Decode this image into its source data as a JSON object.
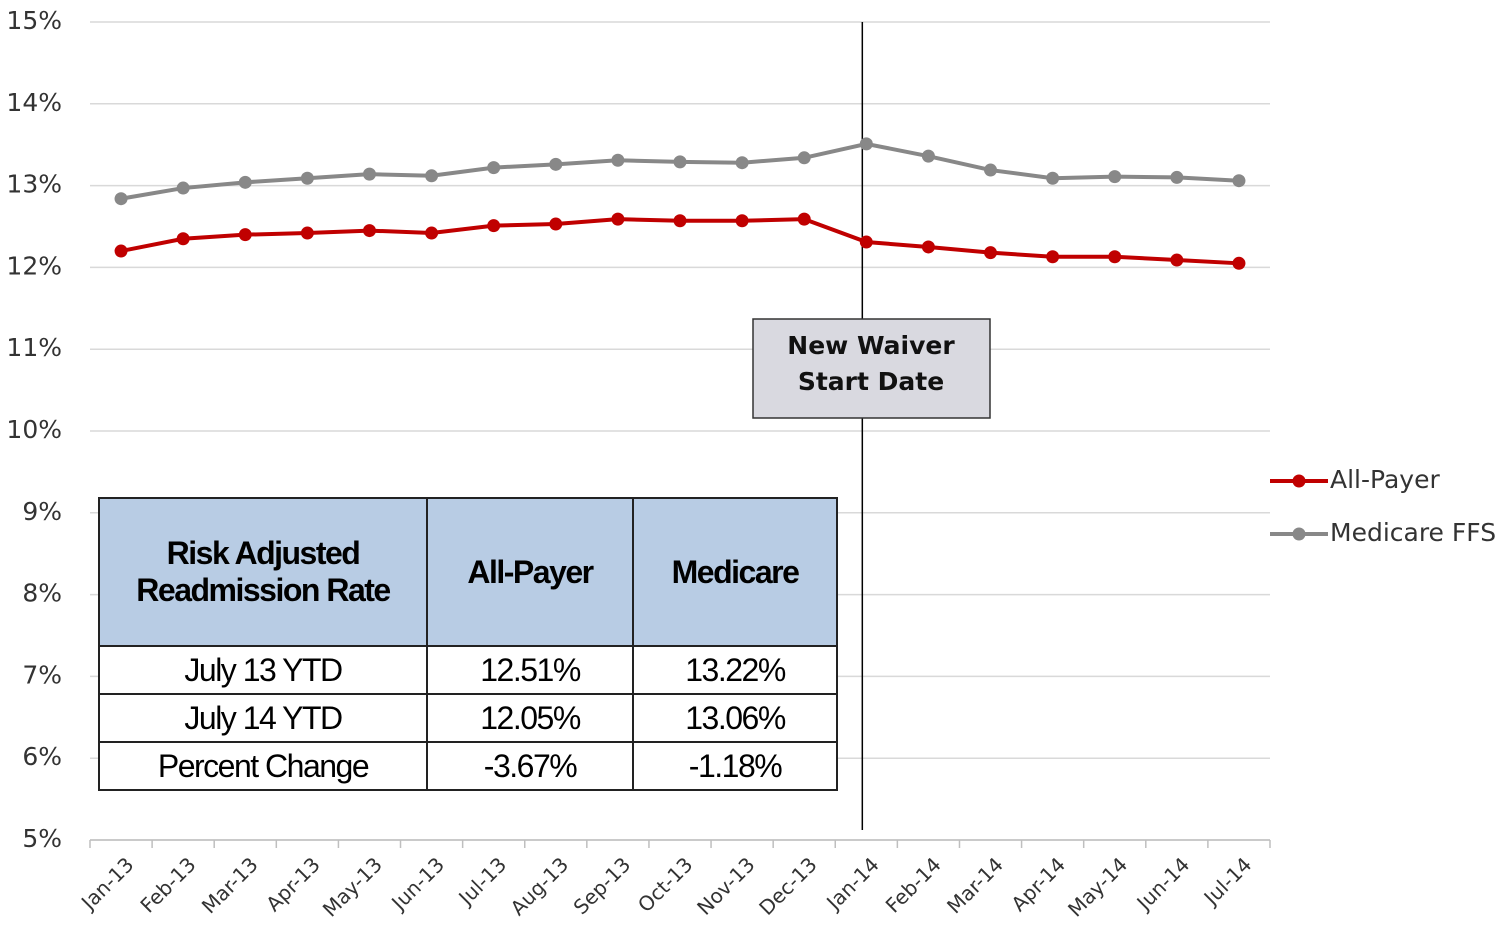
{
  "chart_data": {
    "type": "line",
    "categories": [
      "Jan-13",
      "Feb-13",
      "Mar-13",
      "Apr-13",
      "May-13",
      "Jun-13",
      "Jul-13",
      "Aug-13",
      "Sep-13",
      "Oct-13",
      "Nov-13",
      "Dec-13",
      "Jan-14",
      "Feb-14",
      "Mar-14",
      "Apr-14",
      "May-14",
      "Jun-14",
      "Jul-14"
    ],
    "series": [
      {
        "name": "All-Payer",
        "color": "#c00000",
        "values": [
          12.2,
          12.35,
          12.4,
          12.42,
          12.45,
          12.42,
          12.51,
          12.53,
          12.59,
          12.57,
          12.57,
          12.59,
          12.31,
          12.25,
          12.18,
          12.13,
          12.13,
          12.09,
          12.05
        ]
      },
      {
        "name": "Medicare FFS",
        "color": "#888888",
        "values": [
          12.84,
          12.97,
          13.04,
          13.09,
          13.14,
          13.12,
          13.22,
          13.26,
          13.31,
          13.29,
          13.28,
          13.34,
          13.51,
          13.36,
          13.19,
          13.09,
          13.11,
          13.1,
          13.06
        ]
      }
    ],
    "ylim": [
      5,
      15
    ],
    "yticks": [
      {
        "value": 5,
        "label": "5%"
      },
      {
        "value": 6,
        "label": "6%"
      },
      {
        "value": 7,
        "label": "7%"
      },
      {
        "value": 8,
        "label": "8%"
      },
      {
        "value": 9,
        "label": "9%"
      },
      {
        "value": 10,
        "label": "10%"
      },
      {
        "value": 11,
        "label": "11%"
      },
      {
        "value": 12,
        "label": "12%"
      },
      {
        "value": 13,
        "label": "13%"
      },
      {
        "value": 14,
        "label": "14%"
      },
      {
        "value": 15,
        "label": "15%"
      }
    ],
    "grid": true,
    "legend": "right",
    "annotation": {
      "lines": [
        "New Waiver",
        "Start Date"
      ],
      "category": "Jan-14"
    },
    "table": {
      "header": [
        "Risk Adjusted Readmission Rate",
        "All-Payer",
        "Medicare"
      ],
      "rows": [
        [
          "July 13 YTD",
          "12.51%",
          "13.22%"
        ],
        [
          "July 14 YTD",
          "12.05%",
          "13.06%"
        ],
        [
          "Percent Change",
          "-3.67%",
          "-1.18%"
        ]
      ]
    }
  }
}
